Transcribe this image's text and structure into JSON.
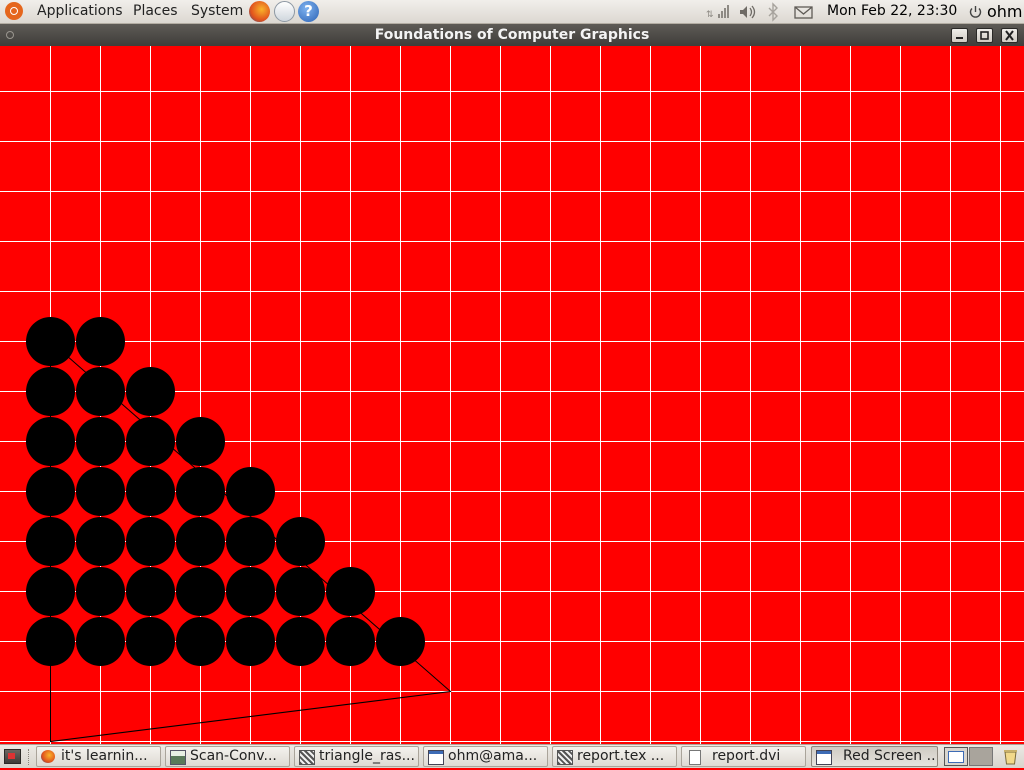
{
  "top_panel": {
    "menus": [
      "Applications",
      "Places",
      "System"
    ],
    "launchers": [
      "firefox-icon",
      "mail-icon",
      "help-icon"
    ],
    "clock": "Mon Feb 22, 23:30",
    "user": "ohm"
  },
  "window": {
    "title": "Foundations of Computer Graphics"
  },
  "taskbar": {
    "items": [
      {
        "label": "it's learnin...",
        "icon": "firefox-icon"
      },
      {
        "label": "Scan-Conv...",
        "icon": "document-viewer-icon"
      },
      {
        "label": "triangle_ras...",
        "icon": "text-editor-icon"
      },
      {
        "label": "ohm@ama...",
        "icon": "terminal-icon"
      },
      {
        "label": "report.tex ...",
        "icon": "text-editor-icon"
      },
      {
        "label": "report.dvi",
        "icon": "document-icon"
      },
      {
        "label": "Red Screen ...",
        "icon": "window-icon",
        "active": true
      }
    ]
  },
  "scene": {
    "background_color": "#ff0000",
    "grid_color": "#ffffff",
    "pixel_color": "#000000",
    "grid_columns": 21,
    "grid_rows": 14,
    "triangle_vertices": [
      [
        1,
        6
      ],
      [
        9,
        13
      ],
      [
        1,
        14
      ]
    ],
    "filled_pixels": [
      [
        0,
        6
      ],
      [
        1,
        6
      ],
      [
        0,
        7
      ],
      [
        1,
        7
      ],
      [
        2,
        7
      ],
      [
        0,
        8
      ],
      [
        1,
        8
      ],
      [
        2,
        8
      ],
      [
        3,
        8
      ],
      [
        0,
        9
      ],
      [
        1,
        9
      ],
      [
        2,
        9
      ],
      [
        3,
        9
      ],
      [
        4,
        9
      ],
      [
        0,
        10
      ],
      [
        1,
        10
      ],
      [
        2,
        10
      ],
      [
        3,
        10
      ],
      [
        4,
        10
      ],
      [
        5,
        10
      ],
      [
        0,
        11
      ],
      [
        1,
        11
      ],
      [
        2,
        11
      ],
      [
        3,
        11
      ],
      [
        4,
        11
      ],
      [
        5,
        11
      ],
      [
        6,
        11
      ],
      [
        0,
        12
      ],
      [
        1,
        12
      ],
      [
        2,
        12
      ],
      [
        3,
        12
      ],
      [
        4,
        12
      ],
      [
        5,
        12
      ],
      [
        6,
        12
      ],
      [
        7,
        12
      ]
    ]
  }
}
